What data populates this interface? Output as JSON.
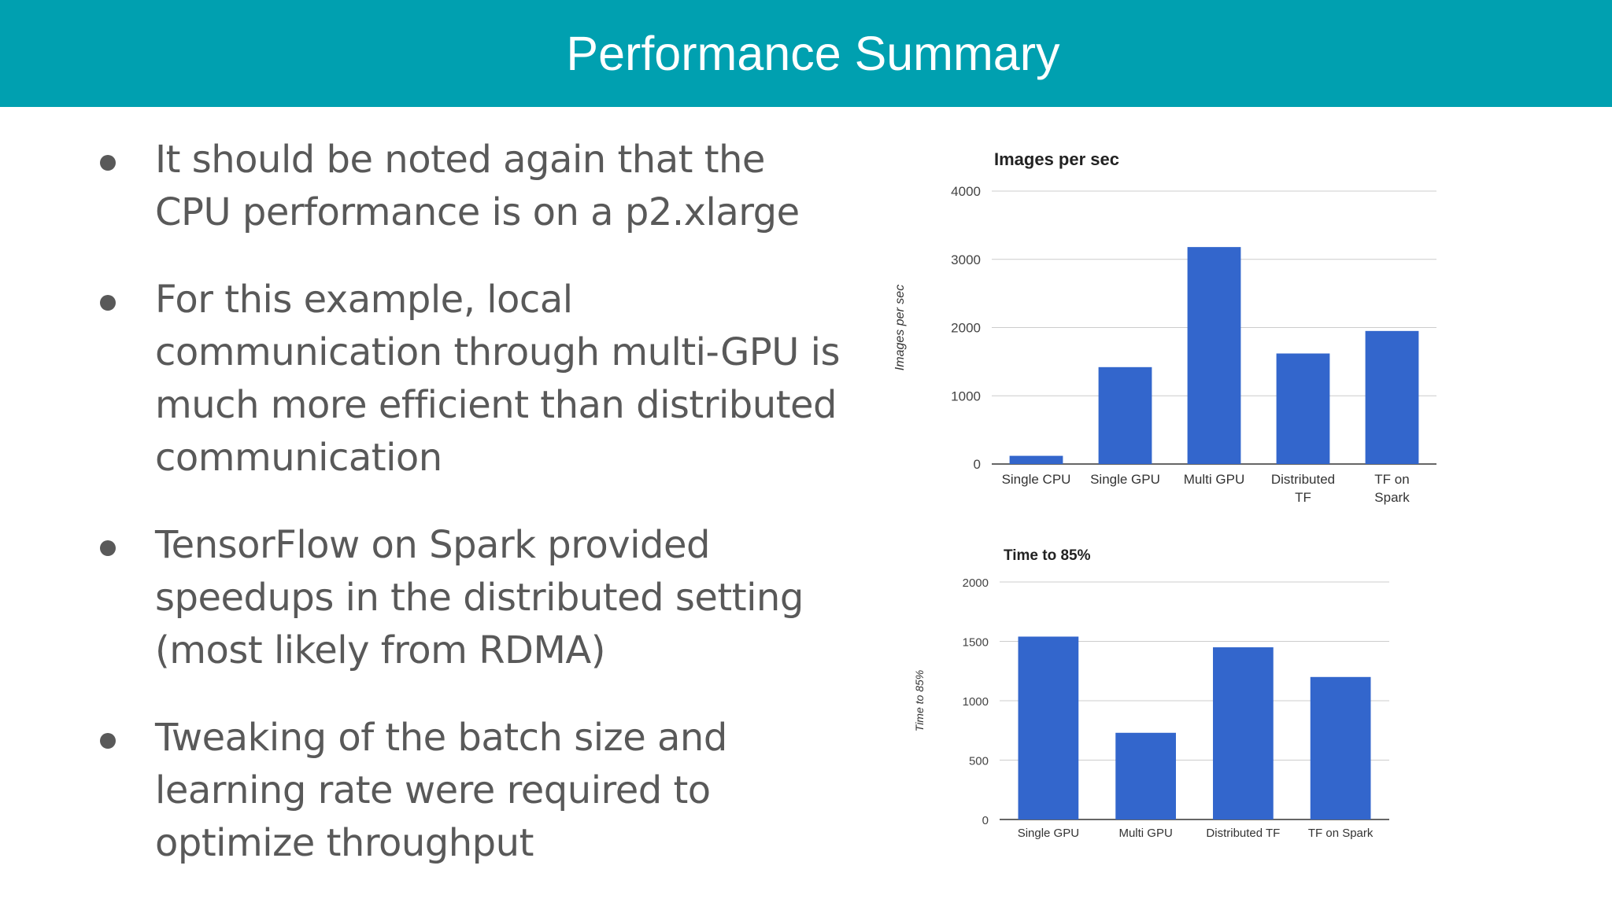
{
  "slide": {
    "title": "Performance Summary",
    "bullets": [
      "It should be noted again that the CPU performance is on a p2.xlarge",
      "For this example, local communication through multi-GPU is much more efficient than distributed communication",
      "TensorFlow on Spark provided speedups in the distributed setting (most likely from RDMA)",
      "Tweaking of the batch size and learning rate were required to optimize throughput"
    ]
  },
  "chart_data": [
    {
      "type": "bar",
      "title": "Images per sec",
      "xlabel": "",
      "ylabel": "Images per sec",
      "categories": [
        "Single CPU",
        "Single GPU",
        "Multi GPU",
        "Distributed TF",
        "TF on Spark"
      ],
      "values": [
        120,
        1420,
        3180,
        1620,
        1950
      ],
      "ylim": [
        0,
        4000
      ],
      "yticks": [
        0,
        1000,
        2000,
        3000,
        4000
      ],
      "grid": true,
      "legend": "none",
      "bar_color": "#3366cc"
    },
    {
      "type": "bar",
      "title": "Time to 85%",
      "xlabel": "",
      "ylabel": "Time to 85%",
      "categories": [
        "Single GPU",
        "Multi GPU",
        "Distributed TF",
        "TF on Spark"
      ],
      "values": [
        1540,
        730,
        1450,
        1200
      ],
      "ylim": [
        0,
        2000
      ],
      "yticks": [
        0,
        500,
        1000,
        1500,
        2000
      ],
      "grid": true,
      "legend": "none",
      "bar_color": "#3366cc"
    }
  ]
}
